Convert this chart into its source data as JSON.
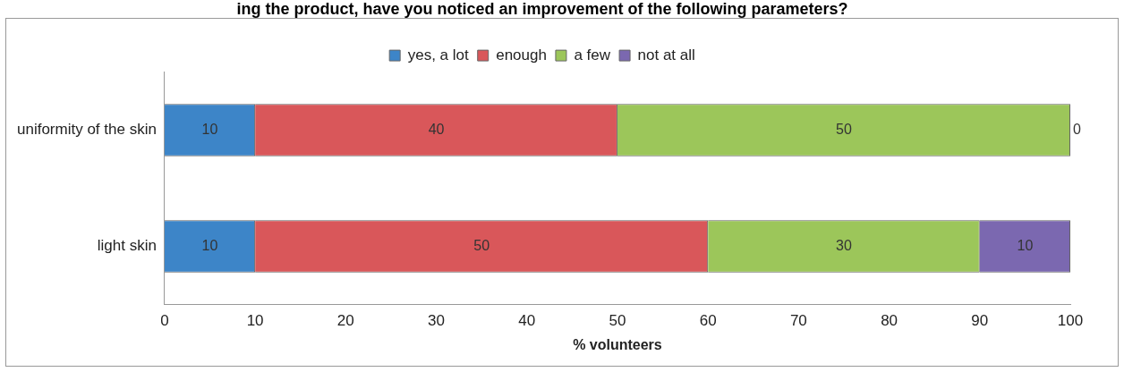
{
  "chart_data": {
    "type": "bar",
    "orientation": "horizontal",
    "stacked": true,
    "title": "ing the product, have you noticed an improvement of the following parameters?",
    "xlabel": "% volunteers",
    "categories": [
      "uniformity of the skin",
      "light skin"
    ],
    "series": [
      {
        "name": "yes, a lot",
        "color": "#3d85c8",
        "values": [
          10,
          10
        ]
      },
      {
        "name": "enough",
        "color": "#d9575a",
        "values": [
          40,
          50
        ]
      },
      {
        "name": "a few",
        "color": "#9cc65a",
        "values": [
          50,
          30
        ]
      },
      {
        "name": "not at all",
        "color": "#7b68b0",
        "values": [
          0,
          10
        ]
      }
    ],
    "xlim": [
      0,
      100
    ],
    "xticks": [
      0,
      10,
      20,
      30,
      40,
      50,
      60,
      70,
      80,
      90,
      100
    ],
    "legend": "top",
    "grid": false,
    "data_labels": true
  }
}
